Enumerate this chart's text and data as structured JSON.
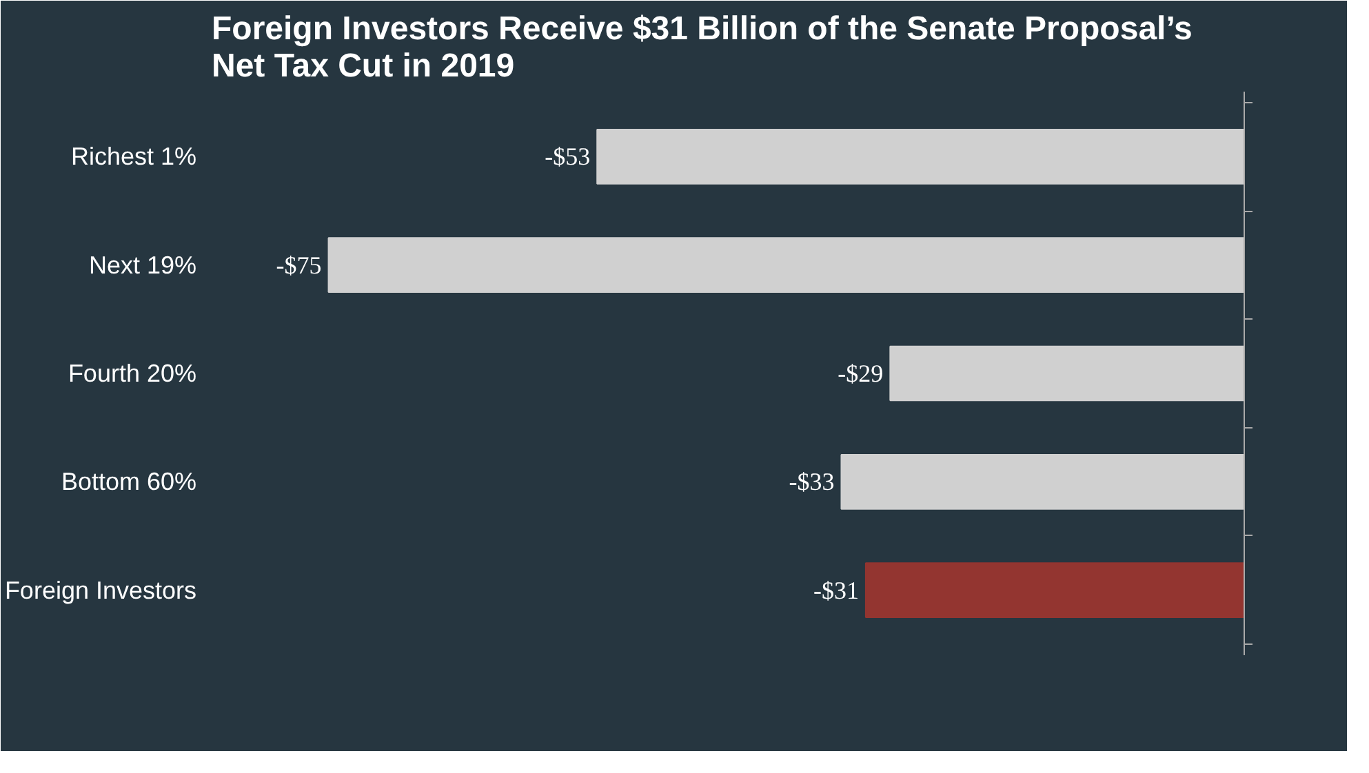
{
  "chart_data": {
    "type": "bar",
    "orientation": "horizontal",
    "title": "Foreign Investors Receive $31 Billion of the Senate Proposal’s Net Tax Cut in 2019",
    "categories": [
      "Richest 1%",
      "Next 19%",
      "Fourth 20%",
      "Bottom 60%",
      "Foreign Investors"
    ],
    "values": [
      -53,
      -75,
      -29,
      -33,
      -31
    ],
    "colors": [
      "#d0d0d0",
      "#d0d0d0",
      "#d0d0d0",
      "#d0d0d0",
      "#933530"
    ],
    "value_labels": [
      "-$53",
      "-$75",
      "-$29",
      "-$33",
      "-$31"
    ],
    "grid": false
  }
}
